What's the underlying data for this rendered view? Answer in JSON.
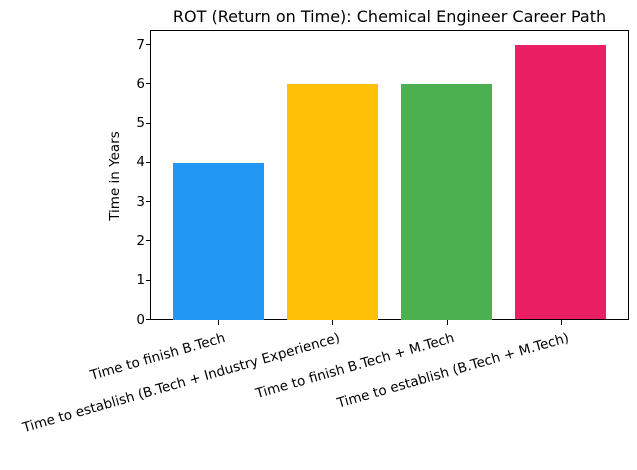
{
  "chart_data": {
    "type": "bar",
    "title": "ROT (Return on Time): Chemical Engineer Career Path",
    "xlabel": "",
    "ylabel": "Time in Years",
    "categories": [
      "Time to finish B.Tech",
      "Time to establish (B.Tech + Industry Experience)",
      "Time to finish B.Tech + M.Tech",
      "Time to establish (B.Tech + M.Tech)"
    ],
    "values": [
      4,
      6,
      6,
      7
    ],
    "bar_colors": [
      "#2196F3",
      "#FFC107",
      "#4CAF50",
      "#E91E63"
    ],
    "yticks": [
      0,
      1,
      2,
      3,
      4,
      5,
      6,
      7
    ],
    "ylim": [
      0,
      7.35
    ],
    "grid": false,
    "legend": null,
    "frame": "full-box",
    "xtick_label_rotation_deg": 16,
    "text_color": "#000000",
    "background_color": "#ffffff"
  }
}
